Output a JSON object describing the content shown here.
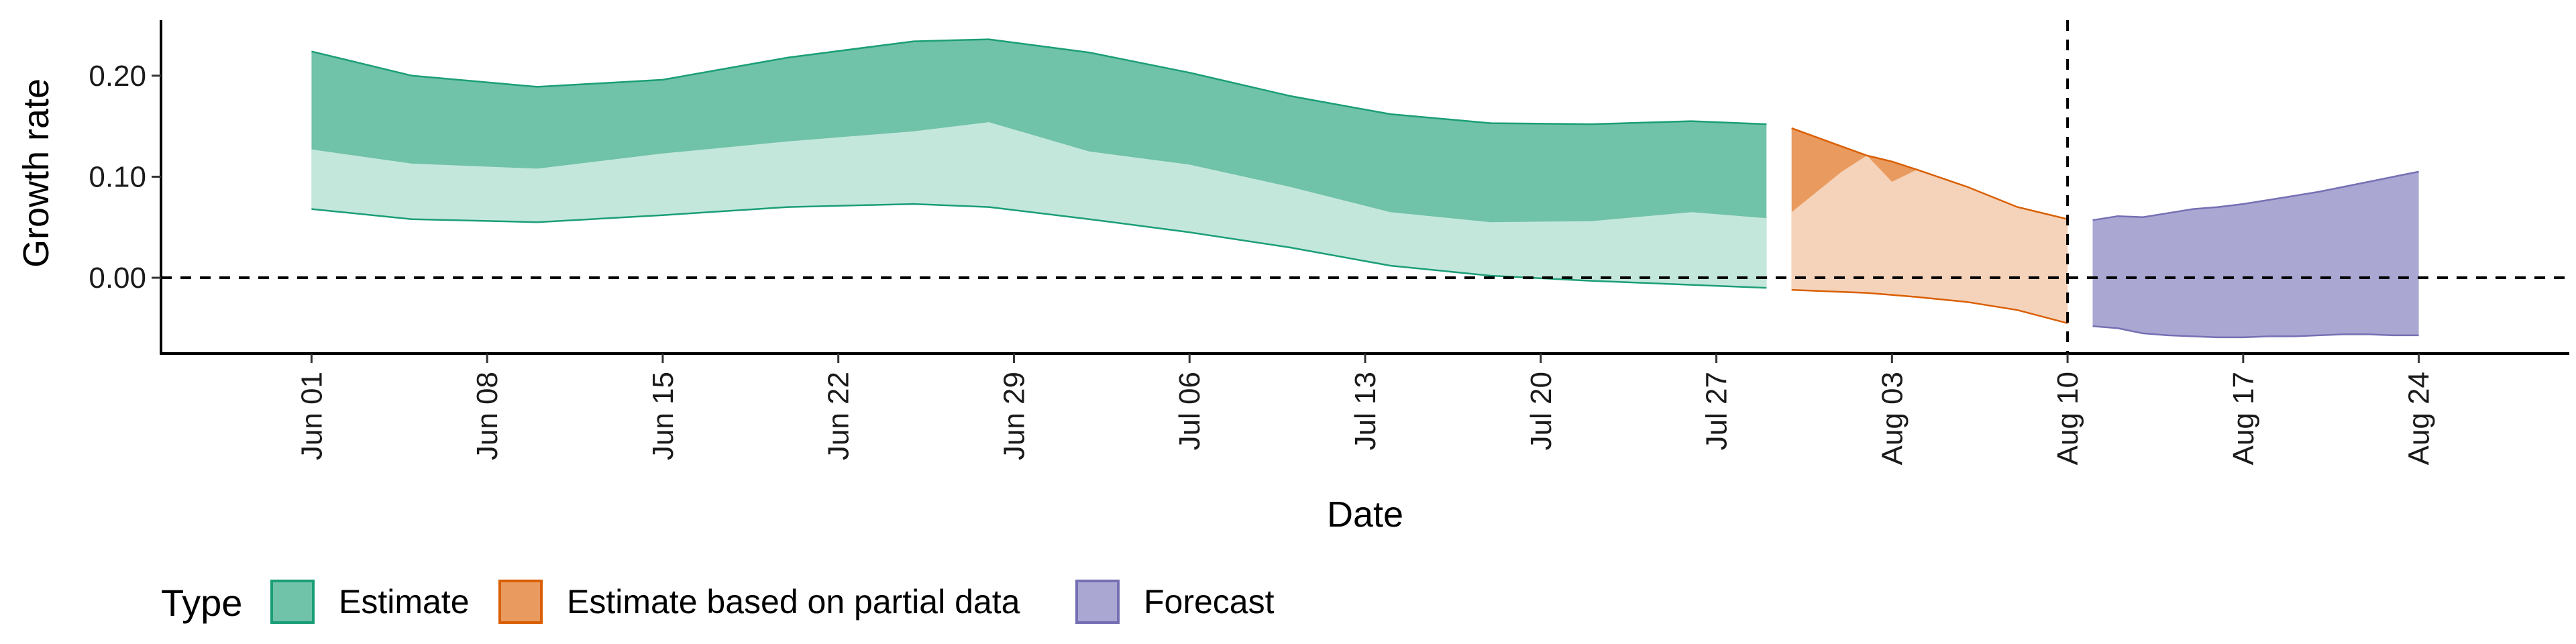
{
  "chart_data": {
    "type": "area",
    "title": "",
    "xlabel": "Date",
    "ylabel": "Growth rate",
    "x_range": [
      "2020-05-26",
      "2020-08-30"
    ],
    "ylim": [
      -0.075,
      0.255
    ],
    "x_ticks": [
      {
        "date": "2020-06-01",
        "label": "Jun 01"
      },
      {
        "date": "2020-06-08",
        "label": "Jun 08"
      },
      {
        "date": "2020-06-15",
        "label": "Jun 15"
      },
      {
        "date": "2020-06-22",
        "label": "Jun 22"
      },
      {
        "date": "2020-06-29",
        "label": "Jun 29"
      },
      {
        "date": "2020-07-06",
        "label": "Jul 06"
      },
      {
        "date": "2020-07-13",
        "label": "Jul 13"
      },
      {
        "date": "2020-07-20",
        "label": "Jul 20"
      },
      {
        "date": "2020-07-27",
        "label": "Jul 27"
      },
      {
        "date": "2020-08-03",
        "label": "Aug 03"
      },
      {
        "date": "2020-08-10",
        "label": "Aug 10"
      },
      {
        "date": "2020-08-17",
        "label": "Aug 17"
      },
      {
        "date": "2020-08-24",
        "label": "Aug 24"
      }
    ],
    "y_ticks": [
      {
        "value": 0.2,
        "label": "0.20"
      },
      {
        "value": 0.1,
        "label": "0.10"
      },
      {
        "value": 0.0,
        "label": "0.00"
      }
    ],
    "grid": false,
    "reference_lines": [
      {
        "orientation": "horizontal",
        "value": 0.0,
        "style": "dashed"
      },
      {
        "orientation": "vertical",
        "value": "2020-08-10",
        "style": "dashed"
      }
    ],
    "legend": {
      "title": "Type",
      "position": "bottom-left",
      "entries": [
        "Estimate",
        "Estimate based on partial data",
        "Forecast"
      ]
    },
    "series": [
      {
        "name": "Estimate",
        "color": "#1b9e77",
        "outer_fill": "#70c2a8",
        "inner_fill": "#c4e7dc",
        "x": [
          "2020-06-01",
          "2020-06-05",
          "2020-06-10",
          "2020-06-15",
          "2020-06-20",
          "2020-06-25",
          "2020-06-28",
          "2020-07-02",
          "2020-07-06",
          "2020-07-10",
          "2020-07-14",
          "2020-07-18",
          "2020-07-22",
          "2020-07-26",
          "2020-07-29"
        ],
        "outer_lower": [
          0.068,
          0.058,
          0.055,
          0.062,
          0.07,
          0.073,
          0.07,
          0.058,
          0.045,
          0.03,
          0.012,
          0.002,
          -0.003,
          -0.007,
          -0.01
        ],
        "inner_upper": [
          0.127,
          0.113,
          0.108,
          0.123,
          0.135,
          0.145,
          0.154,
          0.125,
          0.112,
          0.09,
          0.065,
          0.055,
          0.056,
          0.065,
          0.059
        ],
        "outer_upper": [
          0.224,
          0.2,
          0.189,
          0.196,
          0.218,
          0.234,
          0.236,
          0.223,
          0.203,
          0.18,
          0.162,
          0.153,
          0.152,
          0.155,
          0.152
        ]
      },
      {
        "name": "Estimate based on partial data",
        "color": "#d95f02",
        "outer_fill": "#e99b5f",
        "inner_fill": "#f5d3bb",
        "x": [
          "2020-07-30",
          "2020-08-01",
          "2020-08-02",
          "2020-08-03",
          "2020-08-04",
          "2020-08-06",
          "2020-08-08",
          "2020-08-10"
        ],
        "outer_lower": [
          -0.012,
          -0.014,
          -0.015,
          -0.017,
          -0.019,
          -0.024,
          -0.032,
          -0.045
        ],
        "inner_upper": [
          0.065,
          0.105,
          0.121,
          0.095,
          0.107,
          0.09,
          0.07,
          0.058
        ],
        "outer_upper": [
          0.148,
          0.13,
          0.121,
          0.115,
          0.107,
          0.09,
          0.07,
          0.058
        ]
      },
      {
        "name": "Forecast",
        "color": "#7570b3",
        "outer_fill": "#aaa7d3",
        "inner_fill": "#d9d7ea",
        "x": [
          "2020-08-11",
          "2020-08-12",
          "2020-08-13",
          "2020-08-14",
          "2020-08-15",
          "2020-08-16",
          "2020-08-17",
          "2020-08-18",
          "2020-08-19",
          "2020-08-20",
          "2020-08-21",
          "2020-08-22",
          "2020-08-23",
          "2020-08-24"
        ],
        "outer_lower": [
          -0.048,
          -0.05,
          -0.055,
          -0.057,
          -0.058,
          -0.059,
          -0.059,
          -0.058,
          -0.058,
          -0.057,
          -0.056,
          -0.056,
          -0.057,
          -0.057
        ],
        "outer_upper": [
          0.057,
          0.061,
          0.06,
          0.064,
          0.068,
          0.07,
          0.073,
          0.077,
          0.081,
          0.085,
          0.09,
          0.095,
          0.1,
          0.105
        ]
      }
    ]
  }
}
